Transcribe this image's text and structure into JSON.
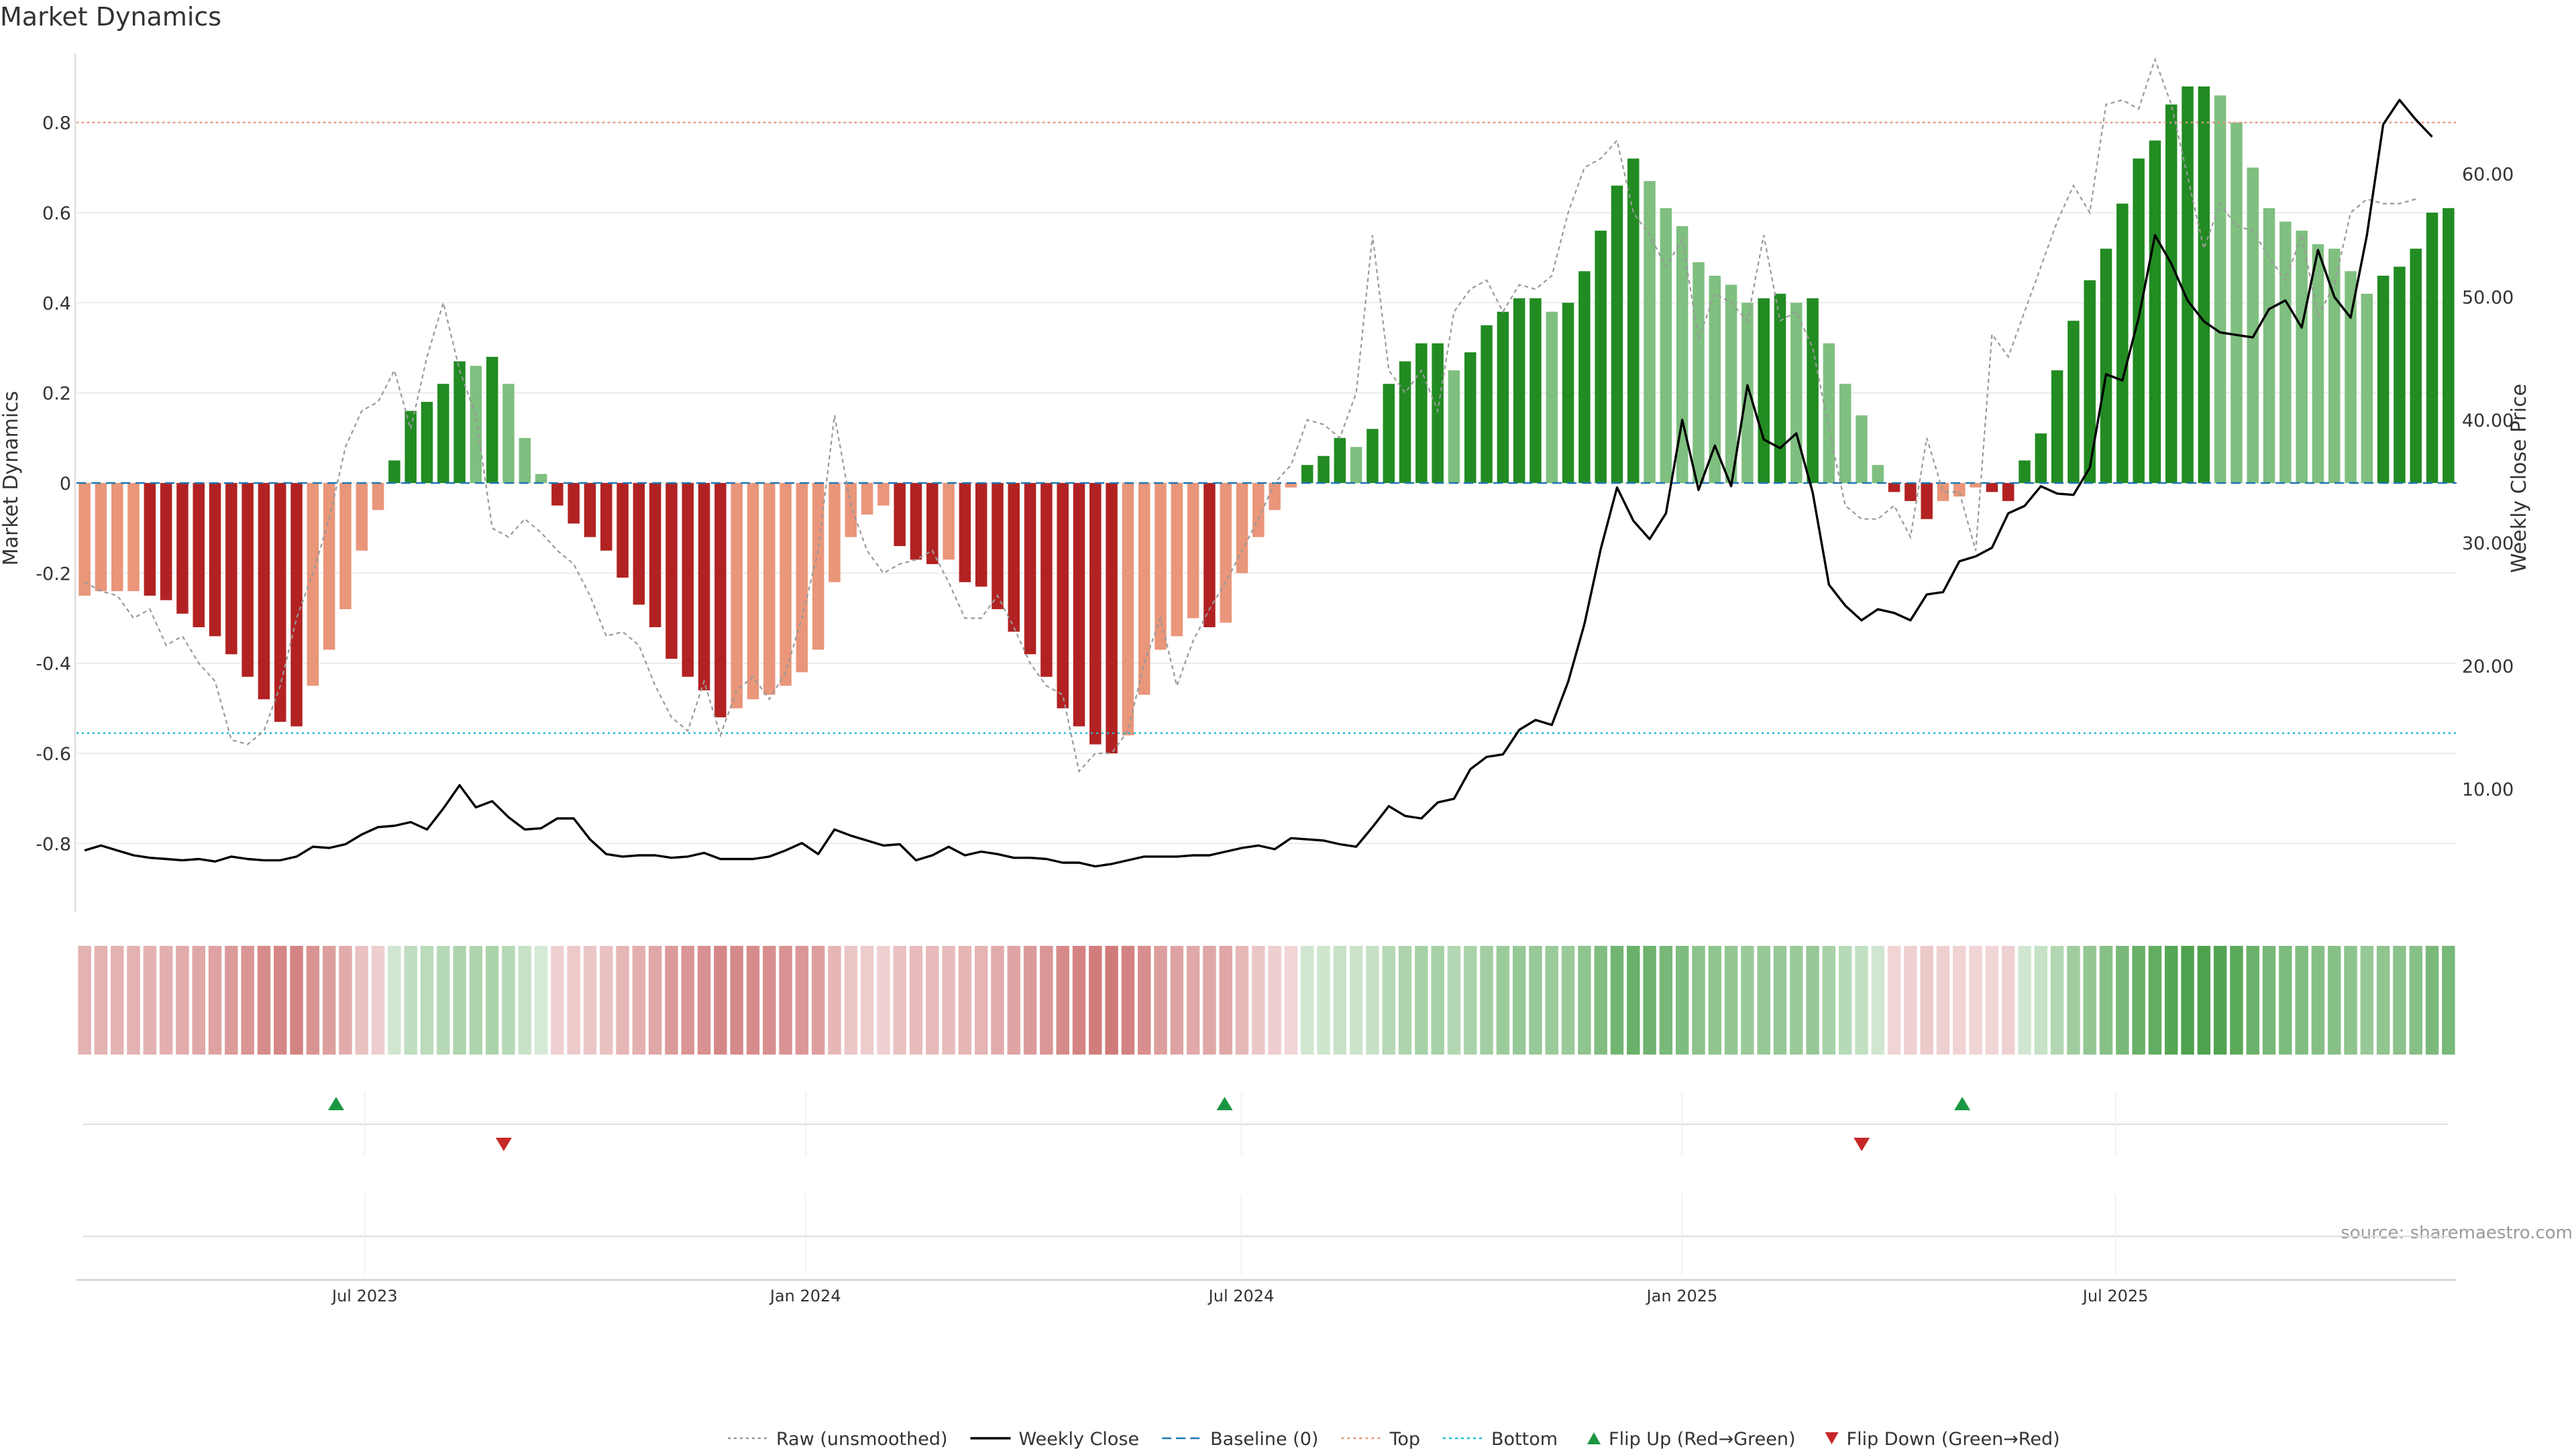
{
  "chart_data": {
    "type": "bar",
    "title": "Market Dynamics",
    "ylabel_left": "Market Dynamics",
    "ylabel_right": "Weekly Close Price",
    "source": "source: sharemaestro.com",
    "ylim_left": [
      -0.95,
      0.95
    ],
    "ylim_right": [
      0.0,
      70.0
    ],
    "yticks_left": [
      {
        "value": 0.8,
        "label": "0.8"
      },
      {
        "value": 0.6,
        "label": "0.6"
      },
      {
        "value": 0.4,
        "label": "0.4"
      },
      {
        "value": 0.2,
        "label": "0.2"
      },
      {
        "value": 0.0,
        "label": "0"
      },
      {
        "value": -0.2,
        "label": "-0.2"
      },
      {
        "value": -0.4,
        "label": "-0.4"
      },
      {
        "value": -0.6,
        "label": "-0.6"
      },
      {
        "value": -0.8,
        "label": "-0.8"
      }
    ],
    "yticks_right": [
      {
        "value": 10,
        "label": "10.00"
      },
      {
        "value": 20,
        "label": "20.00"
      },
      {
        "value": 30,
        "label": "30.00"
      },
      {
        "value": 40,
        "label": "40.00"
      },
      {
        "value": 50,
        "label": "50.00"
      },
      {
        "value": 60,
        "label": "60.00"
      }
    ],
    "x_start": "2023-03-06",
    "x_end": "2025-11-17",
    "x_ticks": [
      {
        "date": "2023-07-01",
        "label": "Jul 2023"
      },
      {
        "date": "2024-01-01",
        "label": "Jan 2024"
      },
      {
        "date": "2024-07-01",
        "label": "Jul 2024"
      },
      {
        "date": "2025-01-01",
        "label": "Jan 2025"
      },
      {
        "date": "2025-07-01",
        "label": "Jul 2025"
      }
    ],
    "top_level": 0.8,
    "bottom_level": -0.555,
    "baseline": 0,
    "grid": true,
    "legend_position": "bottom-center",
    "colors": {
      "strong_green": "#228b22",
      "light_green": "#7fbf7f",
      "strong_red": "#b22222",
      "light_red": "#e9967a",
      "weekly_close": "#000000",
      "raw": "#999999",
      "baseline": "#1f77b4",
      "top": "#e9967a",
      "bottom": "#17becf",
      "flip_up": "#1a9641",
      "flip_down": "#c62828",
      "grid": "#e6e6e6"
    },
    "values": [
      -0.25,
      -0.24,
      -0.24,
      -0.24,
      -0.25,
      -0.26,
      -0.29,
      -0.32,
      -0.34,
      -0.38,
      -0.43,
      -0.48,
      -0.53,
      -0.54,
      -0.45,
      -0.37,
      -0.28,
      -0.15,
      -0.06,
      0.05,
      0.16,
      0.18,
      0.22,
      0.27,
      0.26,
      0.28,
      0.22,
      0.1,
      0.02,
      -0.05,
      -0.09,
      -0.12,
      -0.15,
      -0.21,
      -0.27,
      -0.32,
      -0.39,
      -0.43,
      -0.46,
      -0.52,
      -0.5,
      -0.48,
      -0.47,
      -0.45,
      -0.42,
      -0.37,
      -0.22,
      -0.12,
      -0.07,
      -0.05,
      -0.14,
      -0.17,
      -0.18,
      -0.17,
      -0.22,
      -0.23,
      -0.28,
      -0.33,
      -0.38,
      -0.43,
      -0.5,
      -0.54,
      -0.58,
      -0.6,
      -0.56,
      -0.47,
      -0.37,
      -0.34,
      -0.3,
      -0.32,
      -0.31,
      -0.2,
      -0.12,
      -0.06,
      -0.01,
      0.04,
      0.06,
      0.1,
      0.08,
      0.12,
      0.22,
      0.27,
      0.31,
      0.31,
      0.25,
      0.29,
      0.35,
      0.38,
      0.41,
      0.41,
      0.38,
      0.4,
      0.47,
      0.56,
      0.66,
      0.72,
      0.67,
      0.61,
      0.57,
      0.49,
      0.46,
      0.44,
      0.4,
      0.41,
      0.42,
      0.4,
      0.41,
      0.31,
      0.22,
      0.15,
      0.04,
      -0.02,
      -0.04,
      -0.08,
      -0.04,
      -0.03,
      -0.01,
      -0.02,
      -0.04,
      0.05,
      0.11,
      0.25,
      0.36,
      0.45,
      0.52,
      0.62,
      0.72,
      0.76,
      0.84,
      0.88,
      0.88,
      0.86,
      0.8,
      0.7,
      0.61,
      0.58,
      0.56,
      0.53,
      0.52,
      0.47,
      0.42,
      0.46,
      0.48,
      0.52,
      0.6,
      0.61
    ],
    "raw": [
      -0.22,
      -0.24,
      -0.25,
      -0.3,
      -0.28,
      -0.36,
      -0.34,
      -0.4,
      -0.44,
      -0.57,
      -0.58,
      -0.55,
      -0.45,
      -0.3,
      -0.2,
      -0.08,
      0.08,
      0.16,
      0.18,
      0.25,
      0.12,
      0.28,
      0.4,
      0.25,
      0.15,
      -0.1,
      -0.12,
      -0.08,
      -0.11,
      -0.15,
      -0.18,
      -0.25,
      -0.34,
      -0.33,
      -0.36,
      -0.45,
      -0.52,
      -0.55,
      -0.44,
      -0.56,
      -0.46,
      -0.43,
      -0.48,
      -0.42,
      -0.3,
      -0.15,
      0.15,
      -0.05,
      -0.15,
      -0.2,
      -0.18,
      -0.17,
      -0.15,
      -0.22,
      -0.3,
      -0.3,
      -0.25,
      -0.32,
      -0.4,
      -0.45,
      -0.47,
      -0.64,
      -0.6,
      -0.6,
      -0.55,
      -0.4,
      -0.3,
      -0.45,
      -0.35,
      -0.28,
      -0.22,
      -0.15,
      -0.08,
      0.0,
      0.04,
      0.14,
      0.13,
      0.1,
      0.2,
      0.55,
      0.25,
      0.2,
      0.25,
      0.16,
      0.38,
      0.43,
      0.45,
      0.38,
      0.44,
      0.43,
      0.46,
      0.6,
      0.7,
      0.72,
      0.76,
      0.6,
      0.55,
      0.48,
      0.54,
      0.32,
      0.42,
      0.4,
      0.36,
      0.55,
      0.36,
      0.38,
      0.3,
      0.12,
      -0.05,
      -0.08,
      -0.08,
      -0.05,
      -0.12,
      0.1,
      -0.02,
      -0.02,
      -0.15,
      0.33,
      0.28,
      0.38,
      0.48,
      0.58,
      0.66,
      0.6,
      0.84,
      0.85,
      0.83,
      0.94,
      0.84,
      0.68,
      0.52,
      0.62,
      0.57,
      0.56,
      0.5,
      0.45,
      0.55,
      0.37,
      0.44,
      0.6,
      0.63,
      0.62,
      0.62,
      0.63
    ],
    "weekly_close": [
      5.0,
      5.4,
      5.0,
      4.6,
      4.4,
      4.3,
      4.2,
      4.3,
      4.1,
      4.5,
      4.3,
      4.2,
      4.2,
      4.5,
      5.3,
      5.2,
      5.5,
      6.3,
      6.9,
      7.0,
      7.3,
      6.7,
      8.4,
      10.3,
      8.5,
      9.0,
      7.7,
      6.7,
      6.8,
      7.6,
      7.6,
      5.9,
      4.7,
      4.5,
      4.6,
      4.6,
      4.4,
      4.5,
      4.8,
      4.3,
      4.3,
      4.3,
      4.5,
      5.0,
      5.6,
      4.7,
      6.7,
      6.2,
      5.8,
      5.4,
      5.5,
      4.2,
      4.6,
      5.3,
      4.6,
      4.9,
      4.7,
      4.4,
      4.4,
      4.3,
      4.0,
      4.0,
      3.7,
      3.9,
      4.2,
      4.5,
      4.5,
      4.5,
      4.6,
      4.6,
      4.9,
      5.2,
      5.4,
      5.1,
      6.0,
      5.9,
      5.8,
      5.5,
      5.3,
      6.9,
      8.6,
      7.8,
      7.6,
      8.9,
      9.2,
      11.6,
      12.6,
      12.8,
      14.8,
      15.6,
      15.2,
      18.7,
      23.4,
      29.5,
      34.5,
      31.8,
      30.3,
      32.4,
      40.0,
      34.3,
      37.9,
      34.6,
      42.8,
      38.4,
      37.7,
      38.9,
      34.1,
      26.6,
      24.9,
      23.7,
      24.6,
      24.3,
      23.7,
      25.8,
      26.0,
      28.5,
      28.9,
      29.6,
      32.4,
      33.0,
      34.6,
      34.0,
      33.9,
      36.1,
      43.7,
      43.2,
      48.3,
      55.0,
      52.7,
      49.7,
      48.0,
      47.1,
      46.9,
      46.7,
      49.0,
      49.7,
      47.5,
      53.8,
      50.0,
      48.3,
      55.0,
      64.0,
      66.0,
      64.4,
      63.0
    ],
    "flip_up": [
      "2023-06-19",
      "2024-06-24",
      "2025-04-28"
    ],
    "flip_down": [
      "2023-08-28",
      "2025-03-17"
    ],
    "legend": [
      {
        "label": "Raw (unsmoothed)",
        "kind": "dotted",
        "color": "#999999"
      },
      {
        "label": "Weekly Close",
        "kind": "solid",
        "color": "#000000"
      },
      {
        "label": "Baseline (0)",
        "kind": "dashed",
        "color": "#1f77b4"
      },
      {
        "label": "Top",
        "kind": "dotted",
        "color": "#e9967a"
      },
      {
        "label": "Bottom",
        "kind": "dotted",
        "color": "#17becf"
      },
      {
        "label": "Flip Up (Red→Green)",
        "kind": "tri-up",
        "color": "#1a9641"
      },
      {
        "label": "Flip Down (Green→Red)",
        "kind": "tri-down",
        "color": "#c62828"
      }
    ]
  }
}
